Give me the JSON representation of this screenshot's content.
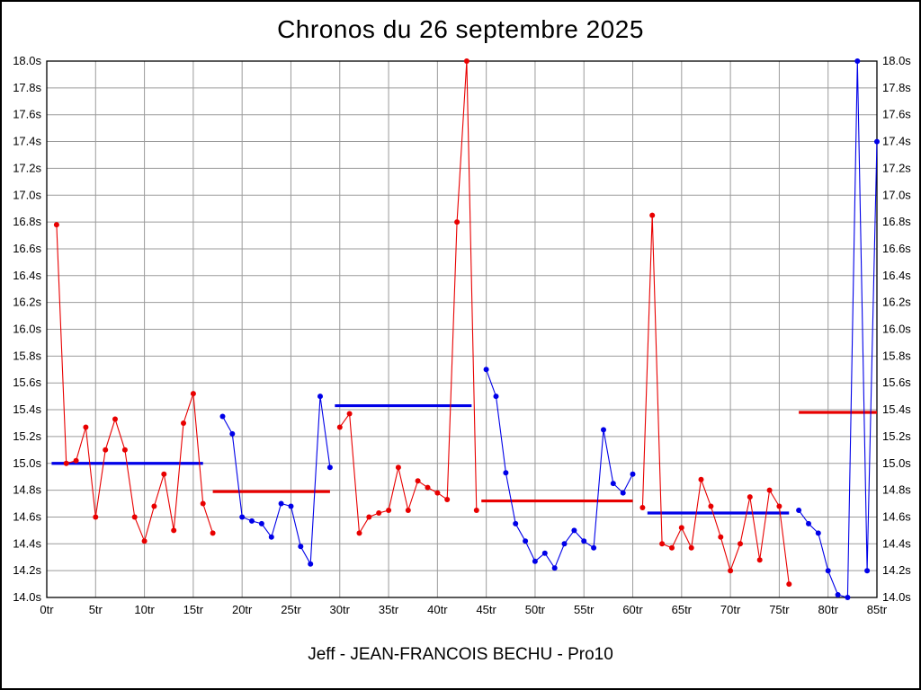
{
  "chart_data": {
    "type": "line",
    "title": "Chronos du 26 septembre 2025",
    "annotation": "Jeff - JEAN-FRANCOIS BECHU - Pro10",
    "x_unit": "tr",
    "y_unit": "s",
    "xlim": [
      0,
      85
    ],
    "ylim": [
      14.0,
      18.0
    ],
    "grid": true,
    "legend": "none",
    "colors": {
      "grid": "#9b9b9b",
      "plot_border": "#000000",
      "labels": "#000000",
      "red_series": "#e80000",
      "blue_series": "#0000e8"
    },
    "x_ticks": [
      "0tr",
      "5tr",
      "10tr",
      "15tr",
      "20tr",
      "25tr",
      "30tr",
      "35tr",
      "40tr",
      "45tr",
      "50tr",
      "55tr",
      "60tr",
      "65tr",
      "70tr",
      "75tr",
      "80tr",
      "85tr"
    ],
    "y_ticks": [
      "14.0s",
      "14.2s",
      "14.4s",
      "14.6s",
      "14.8s",
      "15.0s",
      "15.2s",
      "15.4s",
      "15.6s",
      "15.8s",
      "16.0s",
      "16.2s",
      "16.4s",
      "16.6s",
      "16.8s",
      "17.0s",
      "17.2s",
      "17.4s",
      "17.6s",
      "17.8s",
      "18.0s"
    ],
    "segments": [
      {
        "stint": 1,
        "color": "#e80000",
        "start_lap": 1,
        "lap_times": [
          16.78,
          15.0,
          15.02,
          15.27,
          14.6,
          15.1,
          15.33,
          15.1,
          14.6,
          14.42,
          14.68,
          14.92,
          14.5,
          15.3,
          15.52,
          14.7,
          14.48
        ],
        "average": {
          "color": "#0000e8",
          "value": 15.0,
          "from_lap": 0.5,
          "to_lap": 16.0
        }
      },
      {
        "stint": 2,
        "color": "#0000e8",
        "start_lap": 18,
        "lap_times": [
          15.35,
          15.22,
          14.6,
          14.57,
          14.55,
          14.45,
          14.7,
          14.68,
          14.38,
          14.25,
          15.5,
          14.97
        ],
        "average": {
          "color": "#e80000",
          "value": 14.79,
          "from_lap": 17.0,
          "to_lap": 29.0
        }
      },
      {
        "stint": 3,
        "color": "#e80000",
        "start_lap": 30,
        "lap_times": [
          15.27,
          15.37,
          14.48,
          14.6,
          14.63,
          14.65,
          14.97,
          14.65,
          14.87,
          14.82,
          14.78,
          14.73,
          16.8,
          18.0,
          14.65
        ],
        "average": {
          "color": "#0000e8",
          "value": 15.43,
          "from_lap": 29.5,
          "to_lap": 43.5
        }
      },
      {
        "stint": 4,
        "color": "#0000e8",
        "start_lap": 45,
        "lap_times": [
          15.7,
          15.5,
          14.93,
          14.55,
          14.42,
          14.27,
          14.33,
          14.22,
          14.4,
          14.5,
          14.42,
          14.37,
          15.25,
          14.85,
          14.78,
          14.92
        ],
        "average": {
          "color": "#e80000",
          "value": 14.72,
          "from_lap": 44.5,
          "to_lap": 60.0
        }
      },
      {
        "stint": 5,
        "color": "#e80000",
        "start_lap": 61,
        "lap_times": [
          14.67,
          16.85,
          14.4,
          14.37,
          14.52,
          14.37,
          14.88,
          14.68,
          14.45,
          14.2,
          14.4,
          14.75,
          14.28,
          14.8,
          14.68,
          14.1
        ],
        "average": {
          "color": "#0000e8",
          "value": 14.63,
          "from_lap": 61.5,
          "to_lap": 76.0
        }
      },
      {
        "stint": 6,
        "color": "#0000e8",
        "start_lap": 77,
        "lap_times": [
          14.65,
          14.55,
          14.48,
          14.2,
          14.02,
          14.0,
          18.0,
          14.2,
          17.4
        ],
        "average": {
          "color": "#e80000",
          "value": 15.38,
          "from_lap": 77.0,
          "to_lap": 85.0
        }
      }
    ]
  }
}
